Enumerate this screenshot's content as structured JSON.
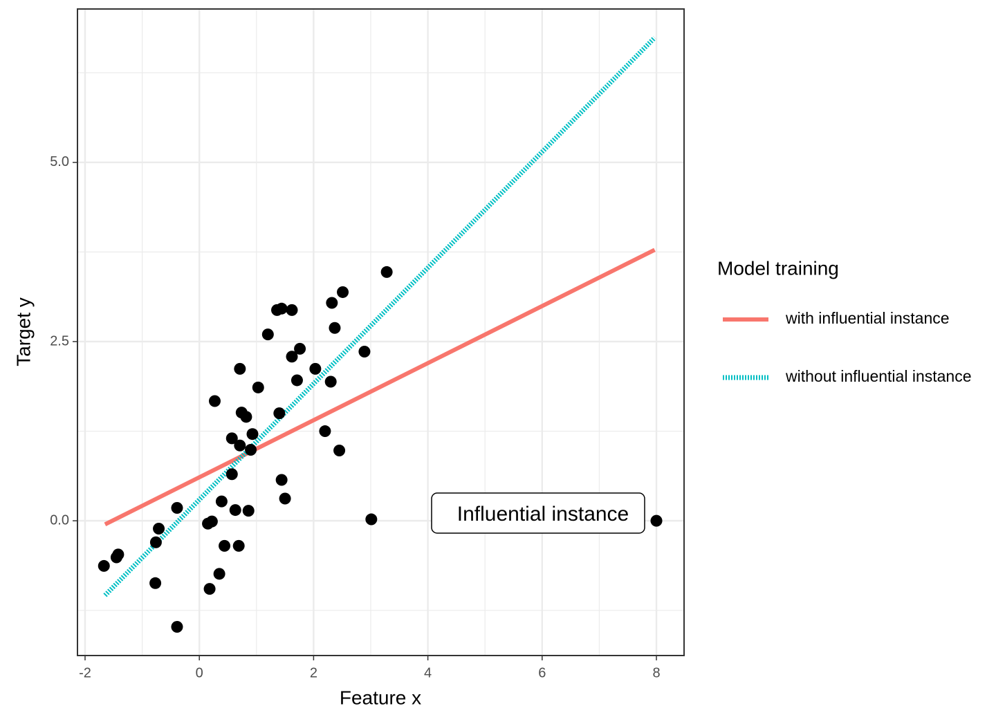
{
  "chart_data": {
    "type": "scatter",
    "x_label": "Feature x",
    "y_label": "Target y",
    "legend_title": "Model training",
    "xlim": [
      -2.133,
      8.484
    ],
    "ylim": [
      -1.88,
      7.14
    ],
    "xticks": [
      -2,
      0,
      2,
      4,
      6,
      8
    ],
    "yticks": [
      {
        "value": 0,
        "label": "0.0"
      },
      {
        "value": 2.5,
        "label": "2.5"
      },
      {
        "value": 5,
        "label": "5.0"
      }
    ],
    "xminorticks": [
      -1,
      1,
      3,
      5,
      7
    ],
    "yminorticks": [
      -1.25,
      1.25,
      3.75,
      6.25
    ],
    "grid": true,
    "points": {
      "color": "#000000",
      "x": [
        -1.67,
        -1.45,
        -1.42,
        -0.77,
        -0.76,
        -0.71,
        -0.39,
        -0.39,
        0.15,
        0.22,
        0.18,
        0.27,
        0.35,
        0.39,
        0.44,
        0.57,
        0.57,
        0.63,
        0.69,
        0.71,
        0.71,
        0.74,
        0.82,
        0.86,
        0.9,
        0.93,
        1.03,
        1.2,
        1.36,
        1.44,
        1.4,
        1.44,
        1.5,
        1.62,
        1.62,
        1.71,
        1.76,
        2.03,
        2.2,
        2.3,
        2.32,
        2.37,
        2.45,
        2.51,
        2.89,
        3.01,
        3.28,
        8.0
      ],
      "values": [
        -0.63,
        -0.51,
        -0.47,
        -0.87,
        -0.3,
        -0.11,
        -1.48,
        0.18,
        -0.04,
        -0.01,
        -0.95,
        1.67,
        -0.74,
        0.27,
        -0.35,
        0.65,
        1.15,
        0.15,
        -0.35,
        1.05,
        2.12,
        1.51,
        1.45,
        0.14,
        0.99,
        1.21,
        1.86,
        2.6,
        2.94,
        2.96,
        1.5,
        0.57,
        0.31,
        2.94,
        2.29,
        1.96,
        2.4,
        2.12,
        1.25,
        1.94,
        3.04,
        2.69,
        0.98,
        3.19,
        2.36,
        0.02,
        3.47,
        0.0
      ]
    },
    "series": [
      {
        "name": "with influential instance",
        "color": "#f8766d",
        "style": "solid",
        "x": [
          -1.65,
          7.97
        ],
        "values": [
          -0.05,
          3.78
        ]
      },
      {
        "name": "without influential instance",
        "color": "#00bfc4",
        "style": "dotted",
        "x": [
          -1.65,
          7.97
        ],
        "values": [
          -1.04,
          6.74
        ]
      }
    ],
    "annotation": "Influential instance"
  }
}
